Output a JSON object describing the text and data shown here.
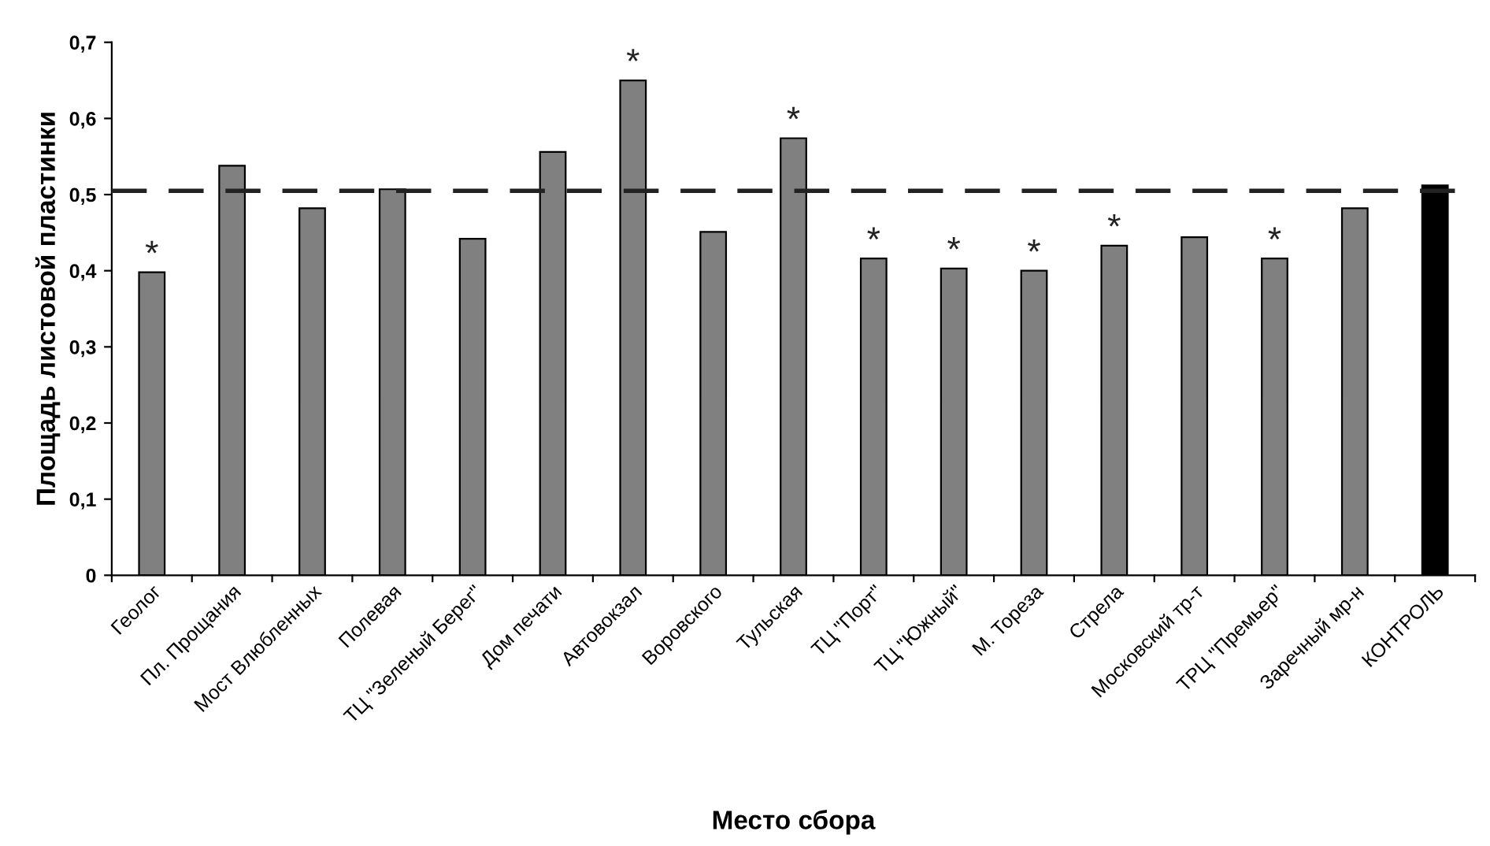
{
  "chart_data": {
    "type": "bar",
    "xlabel": "Место сбора",
    "ylabel": "Площадь листовой пластинки",
    "categories": [
      "Геолог",
      "Пл. Прощания",
      "Мост Влюбленных",
      "Полевая",
      "ТЦ \"Зеленый Берег\"",
      "Дом печати",
      "Автовокзал",
      "Воровского",
      "Тульская",
      "ТЦ \"Порт\"",
      "ТЦ \"Южный\"",
      "М. Тореза",
      "Стрела",
      "Московский тр-т",
      "ТРЦ \"Премьер\"",
      "Заречный мр-н",
      "КОНТРОЛЬ"
    ],
    "values": [
      0.398,
      0.538,
      0.482,
      0.507,
      0.442,
      0.556,
      0.65,
      0.451,
      0.574,
      0.416,
      0.403,
      0.4,
      0.433,
      0.444,
      0.416,
      0.482,
      0.512
    ],
    "colors": [
      "#808080",
      "#808080",
      "#808080",
      "#808080",
      "#808080",
      "#808080",
      "#808080",
      "#808080",
      "#808080",
      "#808080",
      "#808080",
      "#808080",
      "#808080",
      "#808080",
      "#808080",
      "#808080",
      "#000000"
    ],
    "ylim": [
      0,
      0.7
    ],
    "yticks": [
      0,
      {
        "value": 0.1,
        "label": "0,1"
      },
      {
        "value": 0.2,
        "label": "0,2"
      },
      {
        "value": 0.3,
        "label": "0,3"
      },
      {
        "value": 0.4,
        "label": "0,4"
      },
      {
        "value": 0.5,
        "label": "0,5"
      },
      {
        "value": 0.6,
        "label": "0,6"
      },
      {
        "value": 0.7,
        "label": "0,7"
      }
    ],
    "ref_lines": [
      {
        "axis": "y",
        "value": 0.505,
        "color": "#222222",
        "line_style": "dashed"
      }
    ],
    "annotations": [
      {
        "text": "*",
        "x": "Геолог",
        "y": 0.398
      },
      {
        "text": "*",
        "x": "Автовокзал",
        "y": 0.65
      },
      {
        "text": "*",
        "x": "Тульская",
        "y": 0.574
      },
      {
        "text": "*",
        "x": "ТЦ \"Порт\"",
        "y": 0.416
      },
      {
        "text": "*",
        "x": "ТЦ \"Южный\"",
        "y": 0.403
      },
      {
        "text": "*",
        "x": "М. Тореза",
        "y": 0.4
      },
      {
        "text": "*",
        "x": "Стрела",
        "y": 0.433
      },
      {
        "text": "*",
        "x": "ТРЦ \"Премьер\"",
        "y": 0.416
      }
    ],
    "grid": false
  }
}
